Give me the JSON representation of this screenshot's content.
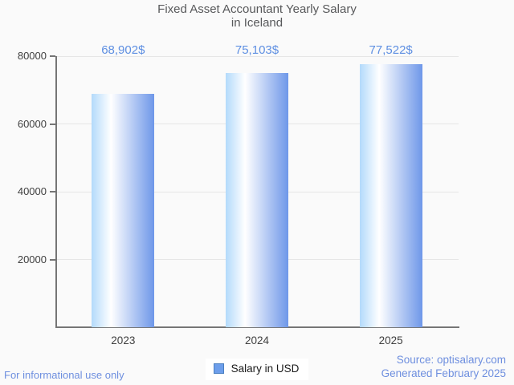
{
  "chart_data": {
    "type": "bar",
    "title": "Fixed Asset Accountant Yearly Salary in Iceland",
    "title_lines": [
      "Fixed Asset Accountant Yearly Salary",
      "in Iceland"
    ],
    "categories": [
      "2023",
      "2024",
      "2025"
    ],
    "values": [
      68902,
      75103,
      77522
    ],
    "value_labels": [
      "68,902$",
      "75,103$",
      "77,522$"
    ],
    "legend": [
      "Salary in USD"
    ],
    "legend_position": "bottom",
    "xlabel": "",
    "ylabel": "",
    "ylim": [
      0,
      80000
    ],
    "yticks": [
      20000,
      40000,
      60000,
      80000
    ],
    "grid": true
  },
  "footer": {
    "left": "For informational use only",
    "source": "Source: optisalary.com",
    "generated": "Generated February 2025"
  },
  "colors": {
    "background": "#FAFAFA",
    "title": "#58595B",
    "axis": "#757575",
    "gridline": "#E6E6E6",
    "tick_label": "#3F3F3F",
    "bar_gradient_left": "#B3DAFB",
    "bar_gradient_mid": "#FFFFFF",
    "bar_gradient_right": "#6E97E9",
    "value_label": "#5E8FE2",
    "legend_swatch": "#6D9EEB",
    "legend_swatch_border": "#4A7FC1",
    "legend_text": "#1A1A1A",
    "footer_text": "#6E8FDF"
  }
}
